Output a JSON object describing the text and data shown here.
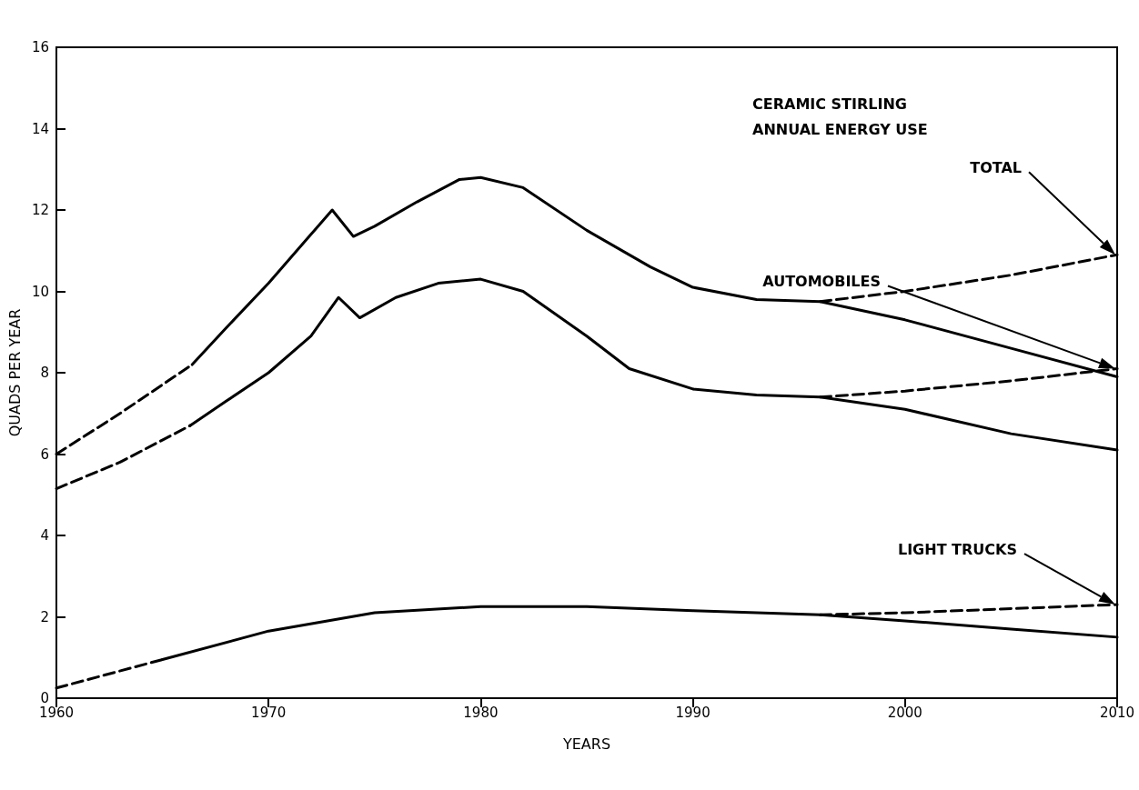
{
  "chart_data": {
    "type": "line",
    "title": "CERAMIC STIRLING ANNUAL ENERGY USE",
    "xlabel": "YEARS",
    "ylabel": "QUADS PER YEAR",
    "xlim": [
      1960,
      2010
    ],
    "xticks": [
      1960,
      1970,
      1980,
      1990,
      2000,
      2010
    ],
    "ylim": [
      0,
      16
    ],
    "yticks": [
      0,
      2,
      4,
      6,
      8,
      10,
      12,
      14,
      16
    ],
    "grid": false,
    "marker": "none",
    "series": [
      {
        "color": "#000000",
        "line_style": "dashed",
        "x": [
          1960,
          1963,
          1966.4
        ],
        "values": [
          6.0,
          7.0,
          8.2
        ]
      },
      {
        "color": "#000000",
        "line_style": "solid",
        "x": [
          1966.4,
          1968,
          1970,
          1972,
          1973,
          1974,
          1975,
          1977,
          1979,
          1980,
          1982,
          1985,
          1988,
          1990,
          1993,
          1996,
          2000,
          2005,
          2010
        ],
        "values": [
          8.2,
          9.1,
          10.2,
          11.4,
          12.0,
          11.35,
          11.6,
          12.2,
          12.75,
          12.8,
          12.55,
          11.5,
          10.6,
          10.1,
          9.8,
          9.75,
          9.3,
          8.6,
          7.9
        ]
      },
      {
        "color": "#000000",
        "line_style": "dashed",
        "x": [
          1996,
          2000,
          2005,
          2010
        ],
        "values": [
          9.75,
          10.0,
          10.4,
          10.9
        ]
      },
      {
        "color": "#000000",
        "line_style": "dashed",
        "x": [
          1960,
          1963,
          1966.3
        ],
        "values": [
          5.15,
          5.8,
          6.7
        ]
      },
      {
        "color": "#000000",
        "line_style": "solid",
        "x": [
          1966.3,
          1968,
          1970,
          1972,
          1973.3,
          1974.3,
          1976,
          1978,
          1980,
          1982,
          1985,
          1987,
          1990,
          1993,
          1996,
          2000,
          2005,
          2010
        ],
        "values": [
          6.7,
          7.3,
          8.0,
          8.9,
          9.85,
          9.35,
          9.85,
          10.2,
          10.3,
          10.0,
          8.9,
          8.1,
          7.6,
          7.45,
          7.4,
          7.1,
          6.5,
          6.1
        ]
      },
      {
        "color": "#000000",
        "line_style": "dashed",
        "x": [
          1996,
          2000,
          2005,
          2010
        ],
        "values": [
          7.4,
          7.55,
          7.8,
          8.1
        ]
      },
      {
        "color": "#000000",
        "line_style": "dashed",
        "x": [
          1960,
          1965
        ],
        "values": [
          0.25,
          0.95
        ]
      },
      {
        "color": "#000000",
        "line_style": "solid",
        "x": [
          1965,
          1970,
          1975,
          1980,
          1985,
          1990,
          1996,
          2000,
          2005,
          2010
        ],
        "values": [
          0.95,
          1.65,
          2.1,
          2.25,
          2.25,
          2.15,
          2.05,
          1.9,
          1.7,
          1.5
        ]
      },
      {
        "color": "#000000",
        "line_style": "dashed",
        "x": [
          1996,
          2000,
          2005,
          2010
        ],
        "values": [
          2.05,
          2.1,
          2.2,
          2.3
        ]
      }
    ],
    "annotations": [
      "TOTAL",
      "AUTOMOBILES",
      "LIGHT TRUCKS"
    ]
  }
}
